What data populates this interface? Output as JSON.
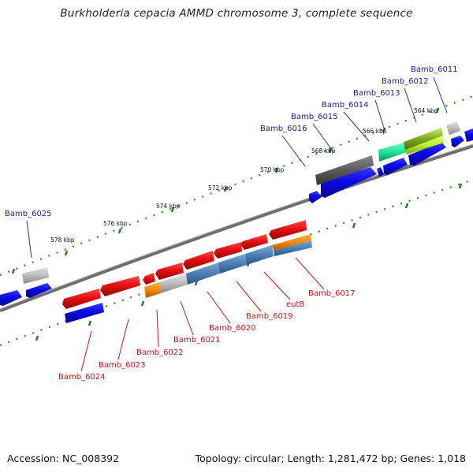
{
  "title": "Burkholderia cepacia AMMD chromosome 3, complete sequence",
  "accession": "Accession: NC_008392",
  "stats": "Topology: circular; Length: 1,281,472 bp; Genes: 1,018",
  "scale_labels": [
    "564 kbp",
    "566 kbp",
    "568 kbp",
    "570 kbp",
    "572 kbp",
    "574 kbp",
    "576 kbp",
    "578 kbp"
  ],
  "genes_forward": [
    "Bamb_6011",
    "Bamb_6012",
    "Bamb_6013",
    "Bamb_6014",
    "Bamb_6015",
    "Bamb_6016",
    "Bamb_6025"
  ],
  "genes_reverse": [
    "Bamb_6017",
    "eutB",
    "Bamb_6019",
    "Bamb_6020",
    "Bamb_6021",
    "Bamb_6022",
    "Bamb_6023",
    "Bamb_6024"
  ],
  "colors": {
    "forward_label": "#1a1aa6",
    "reverse_label": "#c81414",
    "forward_cds": "#1010e0",
    "reverse_cds": "#e01010",
    "backbone": "#808080",
    "ticks": "#2a8a2a"
  }
}
